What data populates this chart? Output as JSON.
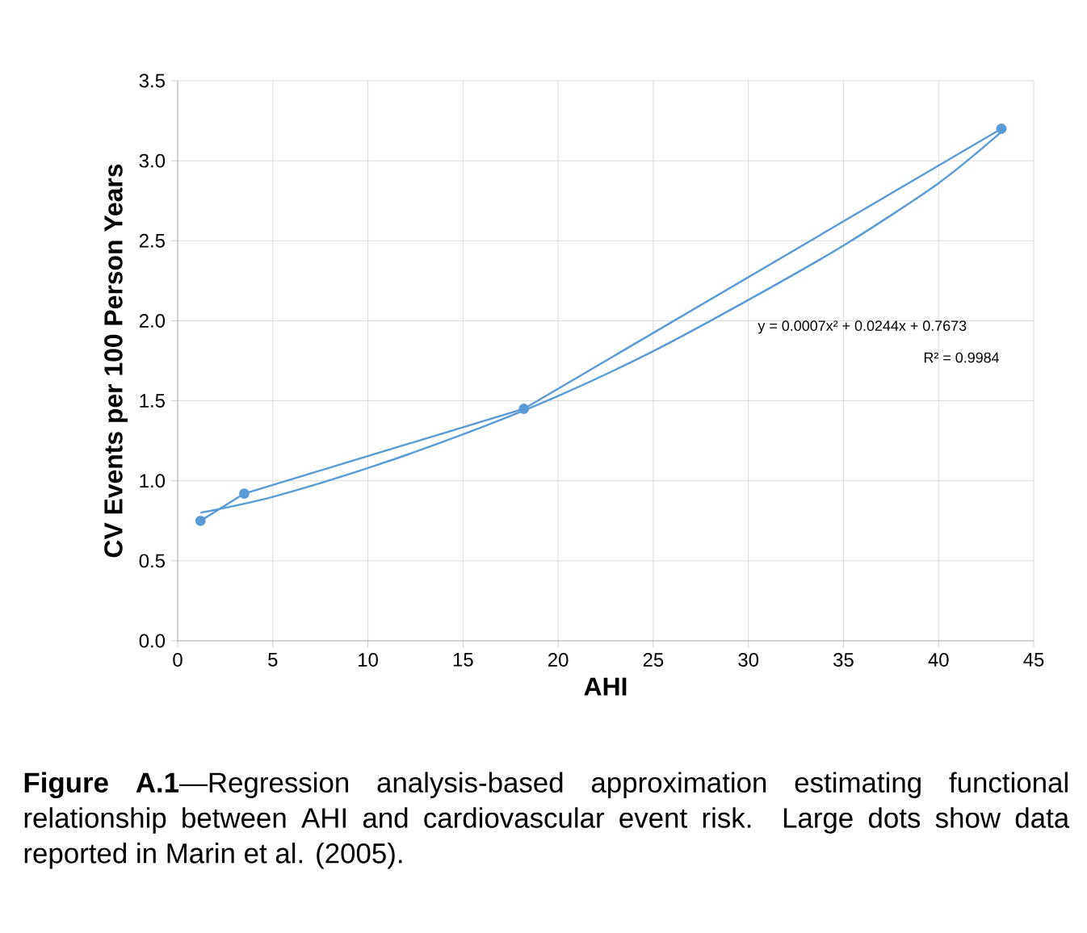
{
  "chart_data": {
    "type": "line",
    "xlabel": "AHI",
    "ylabel": "CV Events per 100 Person Years",
    "xlim": [
      0,
      45
    ],
    "xticks": [
      0,
      5,
      10,
      15,
      20,
      25,
      30,
      35,
      40,
      45
    ],
    "ylim": [
      0,
      3.5
    ],
    "yticks": [
      {
        "value": 0,
        "label": "0.0"
      },
      {
        "value": 0.5,
        "label": "0.5"
      },
      {
        "value": 1,
        "label": "1.0"
      },
      {
        "value": 1.5,
        "label": "1.5"
      },
      {
        "value": 2,
        "label": "2.0"
      },
      {
        "value": 2.5,
        "label": "2.5"
      },
      {
        "value": 3,
        "label": "3.0"
      },
      {
        "value": 3.5,
        "label": "3.5"
      }
    ],
    "grid": true,
    "marker": "circle",
    "line_style": "solid",
    "series": [
      {
        "color": "#5b9bd5",
        "x": [
          1.2,
          3.5,
          18.2,
          43.3
        ],
        "values": [
          0.75,
          0.92,
          1.45,
          3.2
        ]
      },
      {
        "type": "line",
        "color": "#5b9bd5",
        "marker": "none",
        "x": [
          1.2,
          5,
          10,
          15,
          20,
          25,
          30,
          35,
          40,
          43.3
        ],
        "values": [
          0.8,
          0.9,
          1.08,
          1.29,
          1.53,
          1.81,
          2.13,
          2.47,
          2.86,
          3.18
        ]
      }
    ],
    "annotations": [
      "y = 0.0007x² + 0.0244x + 0.7673",
      "R² = 0.9984",
      "**Figure A.1**—Regression analysis-based approximation estimating functional relationship between AHI and cardiovascular event risk. Large dots show data reported in Marin et al. (2005)."
    ]
  }
}
